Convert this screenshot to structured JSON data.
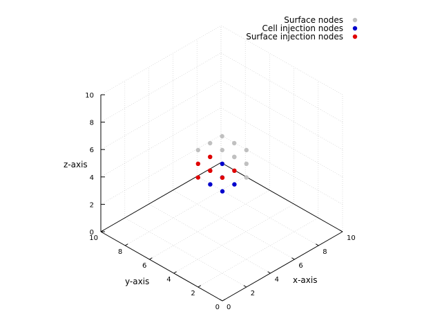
{
  "chart_data": {
    "type": "scatter",
    "view": "3d-isometric",
    "xlabel": "x-axis",
    "ylabel": "y-axis",
    "zlabel": "z-axis",
    "xlim": [
      0,
      10
    ],
    "ylim": [
      0,
      10
    ],
    "zlim": [
      0,
      10
    ],
    "x_ticks": [
      "0",
      "2",
      "4",
      "6",
      "8",
      "10"
    ],
    "y_ticks": [
      "0",
      "2",
      "4",
      "6",
      "8",
      "10"
    ],
    "z_ticks": [
      "0",
      "2",
      "4",
      "6",
      "8",
      "10"
    ],
    "grid": true,
    "legend_position": "top-right",
    "series": [
      {
        "name": "Surface nodes",
        "color": "#c0c0c0",
        "points": [
          {
            "x": 0,
            "y": 0,
            "z": 10
          },
          {
            "x": 0,
            "y": 1,
            "z": 10
          },
          {
            "x": 1,
            "y": 0,
            "z": 10
          },
          {
            "x": 0,
            "y": 2,
            "z": 10
          },
          {
            "x": 1,
            "y": 1,
            "z": 10
          },
          {
            "x": 2,
            "y": 0,
            "z": 10
          },
          {
            "x": 1,
            "y": 2,
            "z": 10
          },
          {
            "x": 2,
            "y": 1,
            "z": 10
          },
          {
            "x": 2,
            "y": 2,
            "z": 10
          },
          {
            "x": 2,
            "y": 0,
            "z": 9
          },
          {
            "x": 2,
            "y": 1,
            "z": 9
          },
          {
            "x": 2,
            "y": 0,
            "z": 8
          },
          {
            "x": 2,
            "y": 1,
            "z": 8
          }
        ]
      },
      {
        "name": "Cell injection nodes",
        "color": "#0000cc",
        "points": [
          {
            "x": 1,
            "y": 1,
            "z": 9
          },
          {
            "x": 1,
            "y": 1,
            "z": 8
          },
          {
            "x": 0,
            "y": 1,
            "z": 8
          },
          {
            "x": 1,
            "y": 0,
            "z": 8
          },
          {
            "x": 0,
            "y": 0,
            "z": 8
          }
        ]
      },
      {
        "name": "Surface injection nodes",
        "color": "#e00000",
        "points": [
          {
            "x": 0,
            "y": 2,
            "z": 9
          },
          {
            "x": 0,
            "y": 2,
            "z": 8
          },
          {
            "x": 1,
            "y": 2,
            "z": 9
          },
          {
            "x": 1,
            "y": 2,
            "z": 8
          },
          {
            "x": 0,
            "y": 1,
            "z": 9
          },
          {
            "x": 0,
            "y": 0,
            "z": 9
          },
          {
            "x": 1,
            "y": 0,
            "z": 9
          }
        ]
      }
    ]
  }
}
